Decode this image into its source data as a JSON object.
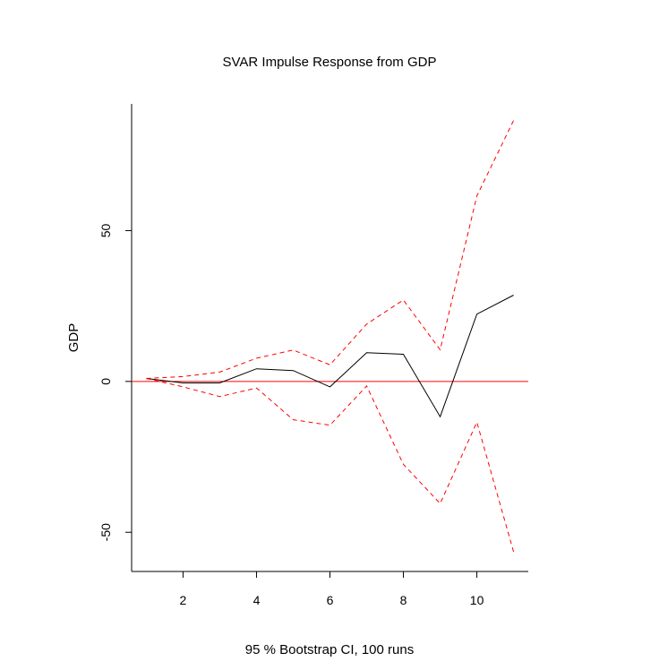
{
  "chart_data": {
    "type": "line",
    "title": "SVAR Impulse Response from GDP",
    "subtitle": "95 % Bootstrap CI,  100 runs",
    "xlabel": "",
    "ylabel": "GDP",
    "xlim": [
      0.6,
      11.4
    ],
    "ylim": [
      -63,
      92
    ],
    "x": [
      1,
      2,
      3,
      4,
      5,
      6,
      7,
      8,
      9,
      10,
      11
    ],
    "x_ticks": [
      2,
      4,
      6,
      8,
      10
    ],
    "y_ticks": [
      -50,
      0,
      50
    ],
    "grid": false,
    "reference_line": {
      "y": 0,
      "color": "#ff0000"
    },
    "series": [
      {
        "role": "response",
        "values": [
          1,
          -0.5,
          -0.5,
          4.2,
          3.6,
          -1.8,
          9.5,
          9.0,
          -11.7,
          22.3,
          28.6
        ],
        "color": "#000000",
        "dash": "solid"
      },
      {
        "role": "upper-ci",
        "values": [
          1,
          1.6,
          3.1,
          7.7,
          10.4,
          5.5,
          19,
          27,
          10.5,
          61.5,
          86.5
        ],
        "color": "#ff0000",
        "dash": "dashed"
      },
      {
        "role": "lower-ci",
        "values": [
          1,
          -1.8,
          -5,
          -2.2,
          -12.7,
          -14.5,
          -1.5,
          -27.5,
          -40.5,
          -13.5,
          -56.5
        ],
        "color": "#ff0000",
        "dash": "dashed"
      }
    ]
  }
}
